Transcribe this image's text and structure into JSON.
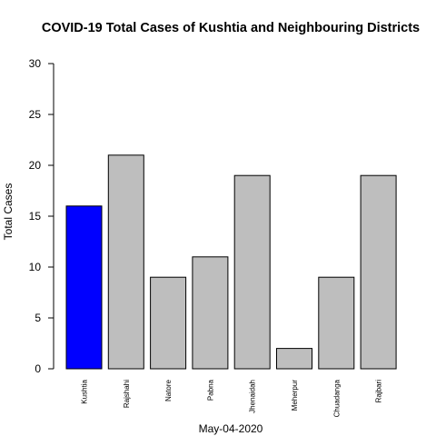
{
  "chart_data": {
    "type": "bar",
    "title": "COVID-19 Total Cases of Kushtia and Neighbouring Districts",
    "xlabel": "May-04-2020",
    "ylabel": "Total Cases",
    "categories": [
      "Kushtia",
      "Rajshahi",
      "Natore",
      "Pabna",
      "Jhenaidah",
      "Meherpur",
      "Chuadanga",
      "Rajbari"
    ],
    "values": [
      16,
      21,
      9,
      11,
      19,
      2,
      9,
      19
    ],
    "colors": [
      "#0000ff",
      "#bebebe",
      "#bebebe",
      "#bebebe",
      "#bebebe",
      "#bebebe",
      "#bebebe",
      "#bebebe"
    ],
    "ylim": [
      0,
      30
    ],
    "yticks": [
      0,
      5,
      10,
      15,
      20,
      25,
      30
    ],
    "grid": false,
    "legend": "none"
  }
}
